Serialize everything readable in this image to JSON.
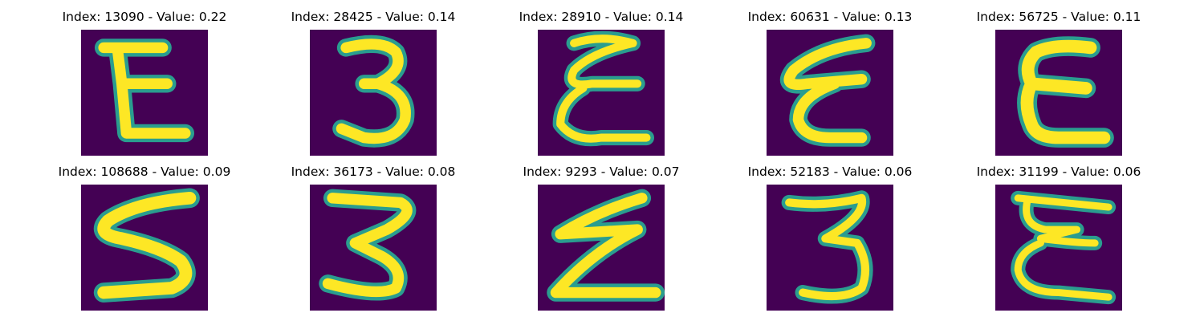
{
  "colors": {
    "background": "#440154",
    "stroke_edge": "#2a9d8f",
    "stroke_core": "#fde725"
  },
  "panels": [
    {
      "title": "Index: 13090 - Value: 0.22",
      "glyph": "E-block-icon"
    },
    {
      "title": "Index: 28425 - Value: 0.14",
      "glyph": "three-icon"
    },
    {
      "title": "Index: 28910 - Value: 0.14",
      "glyph": "E-cursive-icon"
    },
    {
      "title": "Index: 60631 - Value: 0.13",
      "glyph": "E-slanted-icon"
    },
    {
      "title": "Index: 56725 - Value: 0.11",
      "glyph": "E-rounded-icon"
    },
    {
      "title": "Index: 108688 - Value: 0.09",
      "glyph": "S-icon"
    },
    {
      "title": "Index: 36173 - Value: 0.08",
      "glyph": "three-wide-icon"
    },
    {
      "title": "Index: 9293 - Value: 0.07",
      "glyph": "Z-icon"
    },
    {
      "title": "Index: 52183 - Value: 0.06",
      "glyph": "three-tall-icon"
    },
    {
      "title": "Index: 31199 - Value: 0.06",
      "glyph": "E-thin-icon"
    }
  ]
}
